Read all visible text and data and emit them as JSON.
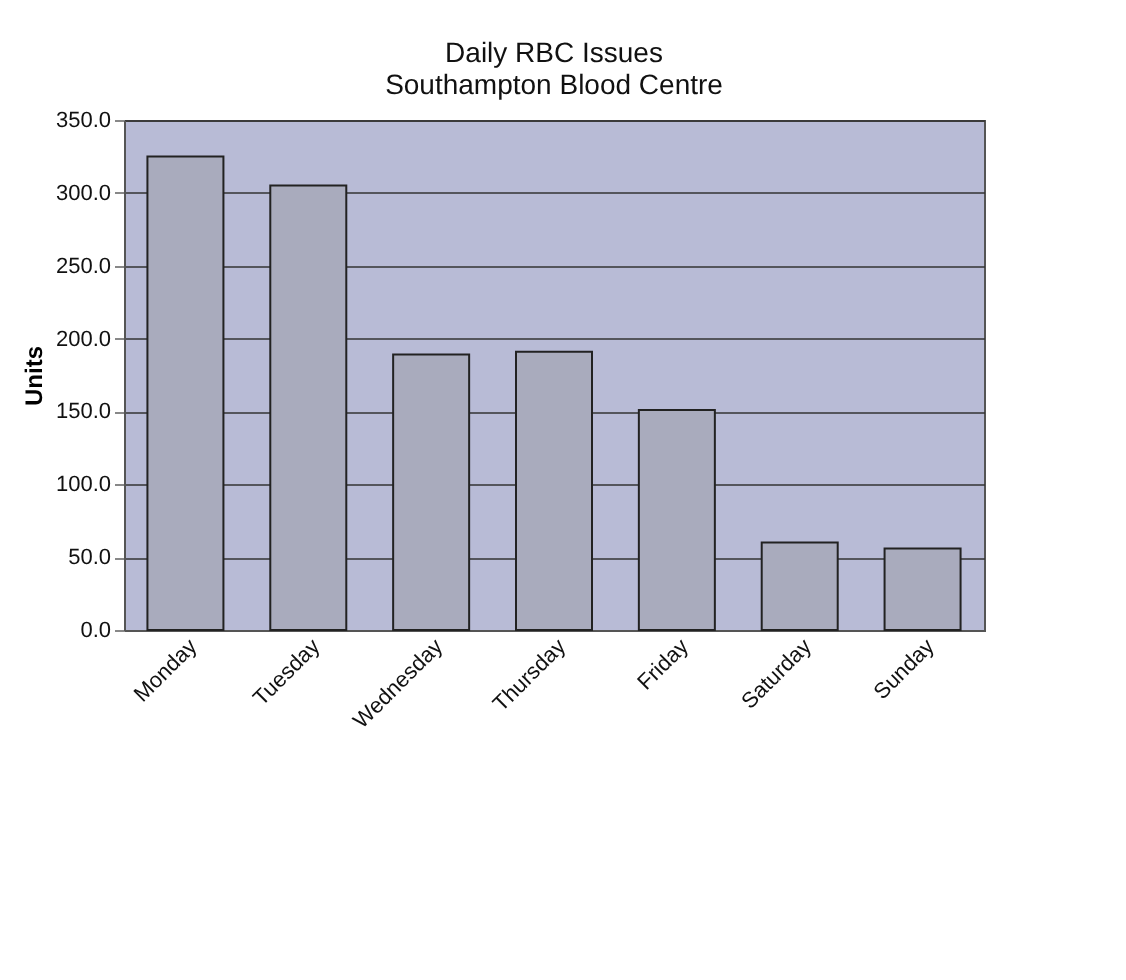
{
  "chart_data": {
    "type": "bar",
    "title": [
      "Daily RBC Issues",
      "Southampton Blood Centre"
    ],
    "ylabel": "Units",
    "categories": [
      "Monday",
      "Tuesday",
      "Wednesday",
      "Thursday",
      "Friday",
      "Saturday",
      "Sunday"
    ],
    "values": [
      325,
      305,
      189,
      191,
      151,
      60,
      56
    ],
    "color": "#a9abbd",
    "ylim": [
      0,
      350
    ],
    "yticks": [
      {
        "value": 0,
        "label": "0.0"
      },
      {
        "value": 50,
        "label": "50.0"
      },
      {
        "value": 100,
        "label": "100.0"
      },
      {
        "value": 150,
        "label": "150.0"
      },
      {
        "value": 200,
        "label": "200.0"
      },
      {
        "value": 250,
        "label": "250.0"
      },
      {
        "value": 300,
        "label": "300.0"
      },
      {
        "value": 350,
        "label": "350.0"
      }
    ],
    "grid": "y"
  }
}
